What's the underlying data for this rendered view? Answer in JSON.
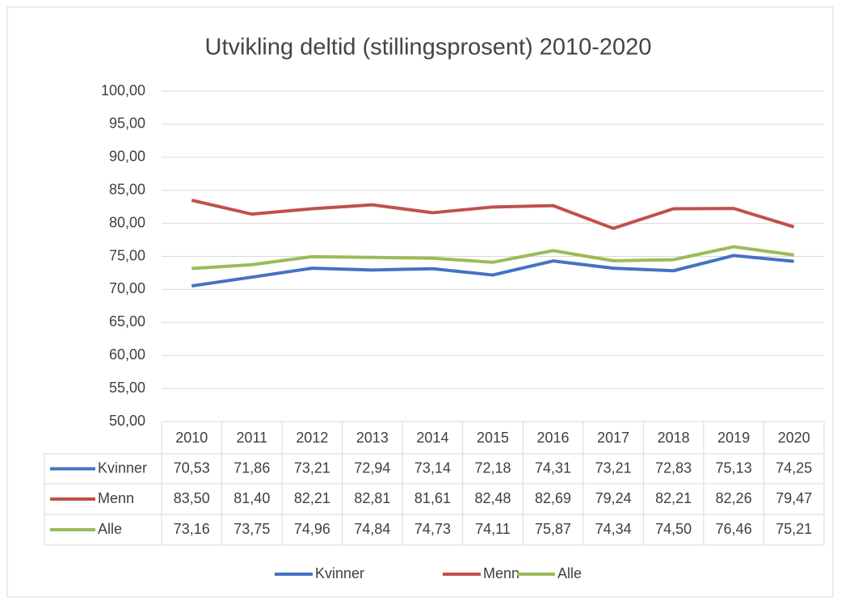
{
  "chart_data": {
    "type": "line",
    "title": "Utvikling deltid (stillingsprosent) 2010-2020",
    "categories": [
      "2010",
      "2011",
      "2012",
      "2013",
      "2014",
      "2015",
      "2016",
      "2017",
      "2018",
      "2019",
      "2020"
    ],
    "series": [
      {
        "name": "Kvinner",
        "color": "#4472c4",
        "values": [
          70.53,
          71.86,
          73.21,
          72.94,
          73.14,
          72.18,
          74.31,
          73.21,
          72.83,
          75.13,
          74.25
        ],
        "value_labels": [
          "70,53",
          "71,86",
          "73,21",
          "72,94",
          "73,14",
          "72,18",
          "74,31",
          "73,21",
          "72,83",
          "75,13",
          "74,25"
        ]
      },
      {
        "name": "Menn",
        "color": "#c0504d",
        "values": [
          83.5,
          81.4,
          82.21,
          82.81,
          81.61,
          82.48,
          82.69,
          79.24,
          82.21,
          82.26,
          79.47
        ],
        "value_labels": [
          "83,50",
          "81,40",
          "82,21",
          "82,81",
          "81,61",
          "82,48",
          "82,69",
          "79,24",
          "82,21",
          "82,26",
          "79,47"
        ]
      },
      {
        "name": "Alle",
        "color": "#9bbb59",
        "values": [
          73.16,
          73.75,
          74.96,
          74.84,
          74.73,
          74.11,
          75.87,
          74.34,
          74.5,
          76.46,
          75.21
        ],
        "value_labels": [
          "73,16",
          "73,75",
          "74,96",
          "74,84",
          "74,73",
          "74,11",
          "75,87",
          "74,34",
          "74,50",
          "76,46",
          "75,21"
        ]
      }
    ],
    "ylim": [
      50,
      100
    ],
    "yticks": [
      {
        "value": 50,
        "label": "50,00"
      },
      {
        "value": 55,
        "label": "55,00"
      },
      {
        "value": 60,
        "label": "60,00"
      },
      {
        "value": 65,
        "label": "65,00"
      },
      {
        "value": 70,
        "label": "70,00"
      },
      {
        "value": 75,
        "label": "75,00"
      },
      {
        "value": 80,
        "label": "80,00"
      },
      {
        "value": 85,
        "label": "85,00"
      },
      {
        "value": 90,
        "label": "90,00"
      },
      {
        "value": 95,
        "label": "95,00"
      },
      {
        "value": 100,
        "label": "100,00"
      }
    ],
    "grid": true,
    "legend": "bottom"
  }
}
